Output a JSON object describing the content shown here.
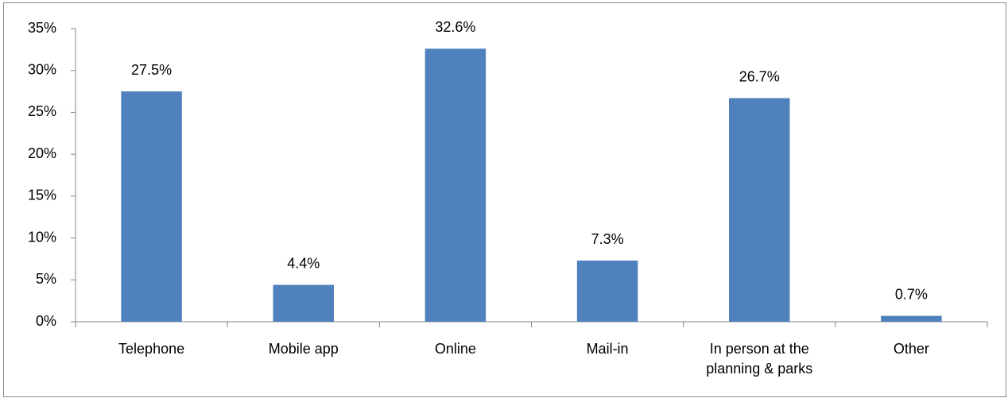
{
  "chart_data": {
    "type": "bar",
    "categories": [
      "Telephone",
      "Mobile app",
      "Online",
      "Mail-in",
      "In person at the planning & parks",
      "Other"
    ],
    "values": [
      27.5,
      4.4,
      32.6,
      7.3,
      26.7,
      0.7
    ],
    "value_labels": [
      "27.5%",
      "4.4%",
      "32.6%",
      "7.3%",
      "26.7%",
      "0.7%"
    ],
    "color": "#4f81bd",
    "ylim": [
      0,
      35
    ],
    "yticks": [
      {
        "value": 0,
        "label": "0%"
      },
      {
        "value": 5,
        "label": "5%"
      },
      {
        "value": 10,
        "label": "10%"
      },
      {
        "value": 15,
        "label": "15%"
      },
      {
        "value": 20,
        "label": "20%"
      },
      {
        "value": 25,
        "label": "25%"
      },
      {
        "value": 30,
        "label": "30%"
      },
      {
        "value": 35,
        "label": "35%"
      }
    ],
    "grid": false
  }
}
